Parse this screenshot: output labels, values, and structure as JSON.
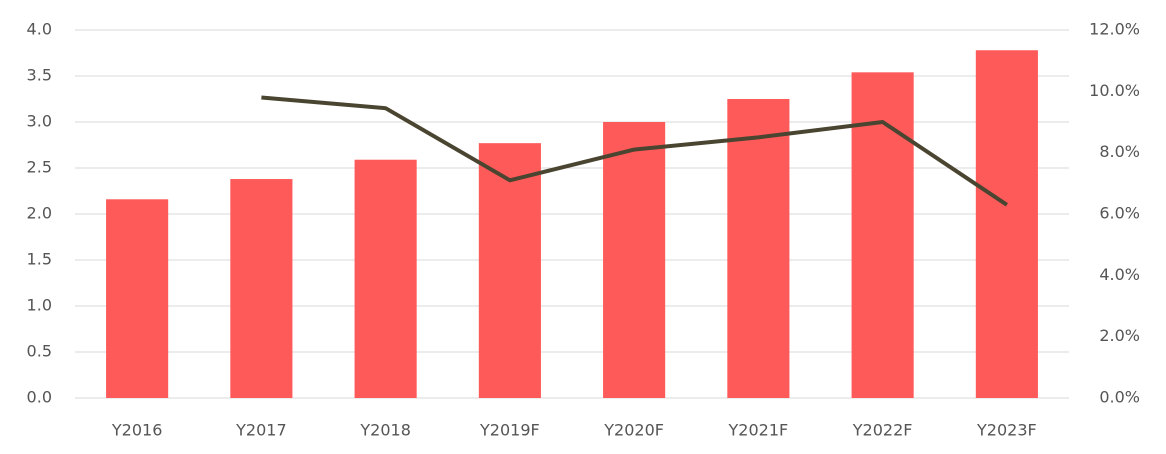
{
  "chart_data": {
    "type": "bar_line",
    "categories": [
      "Y2016",
      "Y2017",
      "Y2018",
      "Y2019F",
      "Y2020F",
      "Y2021F",
      "Y2022F",
      "Y2023F"
    ],
    "series": [
      {
        "type": "bar",
        "color": "#ff5a5a",
        "values": [
          2.16,
          2.38,
          2.59,
          2.77,
          3.0,
          3.25,
          3.54,
          3.78
        ]
      },
      {
        "type": "line",
        "axis": "y2",
        "color": "#4a4530",
        "values": [
          null,
          9.8,
          9.45,
          7.1,
          8.1,
          8.5,
          9.0,
          6.3
        ]
      }
    ],
    "ylim": [
      0,
      4
    ],
    "yticks": [
      {
        "value": 0,
        "label": "0.0"
      },
      {
        "value": 0.5,
        "label": "0.5"
      },
      {
        "value": 1,
        "label": "1.0"
      },
      {
        "value": 1.5,
        "label": "1.5"
      },
      {
        "value": 2,
        "label": "2.0"
      },
      {
        "value": 2.5,
        "label": "2.5"
      },
      {
        "value": 3,
        "label": "3.0"
      },
      {
        "value": 3.5,
        "label": "3.5"
      },
      {
        "value": 4,
        "label": "4.0"
      }
    ],
    "y2lim": [
      0,
      12
    ],
    "y2ticks": [
      {
        "value": 0,
        "label": "0.0%"
      },
      {
        "value": 2,
        "label": "2.0%"
      },
      {
        "value": 4,
        "label": "4.0%"
      },
      {
        "value": 6,
        "label": "6.0%"
      },
      {
        "value": 8,
        "label": "8.0%"
      },
      {
        "value": 10,
        "label": "10.0%"
      },
      {
        "value": 12,
        "label": "12.0%"
      }
    ],
    "grid": true
  }
}
